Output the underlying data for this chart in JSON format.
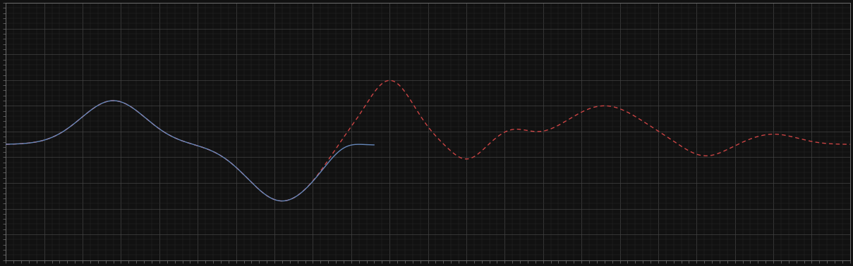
{
  "background_color": "#111111",
  "plot_bg_color": "#111111",
  "grid_color": "#444444",
  "axes_color": "#777777",
  "line1_color": "#6688bb",
  "line2_color": "#cc4444",
  "line_width": 1.0,
  "figsize": [
    12.09,
    3.78
  ],
  "dpi": 100,
  "xlim": [
    0,
    110
  ],
  "ylim": [
    -4.0,
    6.0
  ],
  "grid_major_x": 5,
  "grid_major_y": 1,
  "grid_minor_x": 1,
  "grid_minor_y": 0.2
}
